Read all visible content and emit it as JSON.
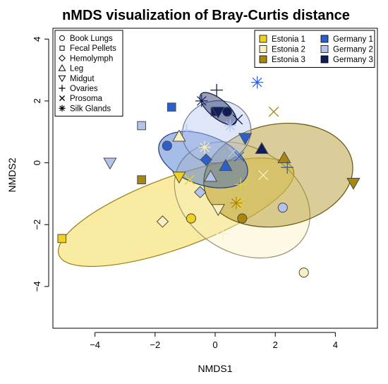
{
  "chart_data": {
    "type": "scatter",
    "title": "nMDS visualization of Bray-Curtis distance",
    "xlabel": "NMDS1",
    "ylabel": "NMDS2",
    "xlim": [
      -5.4,
      5.4
    ],
    "ylim": [
      -5.35,
      4.35
    ],
    "xticks": [
      -4,
      -2,
      0,
      2,
      4
    ],
    "yticks": [
      -4,
      -2,
      0,
      2,
      4
    ],
    "grid": false,
    "tissue_legend_position": "top-left",
    "group_legend_position": "top-right",
    "tissues": [
      {
        "label": "Book Lungs",
        "symbol": "circle"
      },
      {
        "label": "Fecal Pellets",
        "symbol": "square"
      },
      {
        "label": "Hemolymph",
        "symbol": "diamond"
      },
      {
        "label": "Leg",
        "symbol": "triangle-up"
      },
      {
        "label": "Midgut",
        "symbol": "triangle-down"
      },
      {
        "label": "Ovaries",
        "symbol": "plus"
      },
      {
        "label": "Prosoma",
        "symbol": "cross"
      },
      {
        "label": "Silk Glands",
        "symbol": "asterisk"
      }
    ],
    "groups": [
      {
        "label": "Estonia 1",
        "color": "#F0D020"
      },
      {
        "label": "Estonia 2",
        "color": "#FAF0BE"
      },
      {
        "label": "Estonia 3",
        "color": "#A8870F"
      },
      {
        "label": "Germany 1",
        "color": "#2B5FCB"
      },
      {
        "label": "Germany 2",
        "color": "#B3C3EC"
      },
      {
        "label": "Germany 3",
        "color": "#0E1D5C"
      }
    ],
    "ellipses": [
      {
        "group": "Estonia 1",
        "cx": -1.3,
        "cy": -1.6,
        "rx": 4.15,
        "ry": 1.15,
        "angle": 20
      },
      {
        "group": "Estonia 2",
        "cx": 0.9,
        "cy": -1.2,
        "rx": 2.4,
        "ry": 1.7,
        "angle": -30
      },
      {
        "group": "Estonia 3",
        "cx": 2.1,
        "cy": -0.4,
        "rx": 2.5,
        "ry": 1.65,
        "angle": 10
      },
      {
        "group": "Germany 1",
        "cx": -0.4,
        "cy": 0.1,
        "rx": 1.55,
        "ry": 0.8,
        "angle": -20
      },
      {
        "group": "Germany 2",
        "cx": 0.05,
        "cy": 1.0,
        "rx": 1.15,
        "ry": 1.0,
        "angle": 15
      },
      {
        "group": "Germany 3",
        "cx": 0.1,
        "cy": 1.75,
        "rx": 0.75,
        "ry": 0.3,
        "angle": -40
      }
    ],
    "points": [
      {
        "x": -5.1,
        "y": -2.45,
        "symbol": "square",
        "group": "Estonia 1"
      },
      {
        "x": -0.8,
        "y": -1.8,
        "symbol": "circle",
        "group": "Estonia 1"
      },
      {
        "x": -1.2,
        "y": -0.45,
        "symbol": "triangle-down",
        "group": "Estonia 1"
      },
      {
        "x": 0.85,
        "y": -0.7,
        "symbol": "plus",
        "group": "Estonia 1"
      },
      {
        "x": -0.85,
        "y": -0.55,
        "symbol": "cross",
        "group": "Estonia 1"
      },
      {
        "x": 0.8,
        "y": -1.3,
        "symbol": "asterisk",
        "group": "Estonia 1"
      },
      {
        "x": 2.95,
        "y": -3.55,
        "symbol": "circle",
        "group": "Estonia 2"
      },
      {
        "x": -1.75,
        "y": -1.9,
        "symbol": "diamond",
        "group": "Estonia 2"
      },
      {
        "x": -1.2,
        "y": 0.85,
        "symbol": "triangle-up",
        "group": "Estonia 2"
      },
      {
        "x": 0.1,
        "y": -1.5,
        "symbol": "triangle-down",
        "group": "Estonia 2"
      },
      {
        "x": 0.25,
        "y": -2.3,
        "symbol": "plus",
        "group": "Estonia 2"
      },
      {
        "x": 1.6,
        "y": -0.4,
        "symbol": "cross",
        "group": "Estonia 2"
      },
      {
        "x": -0.35,
        "y": 0.5,
        "symbol": "asterisk",
        "group": "Estonia 2"
      },
      {
        "x": 0.9,
        "y": -1.8,
        "symbol": "circle",
        "group": "Estonia 3"
      },
      {
        "x": -2.45,
        "y": -0.55,
        "symbol": "square",
        "group": "Estonia 3"
      },
      {
        "x": 2.3,
        "y": 0.15,
        "symbol": "triangle-up",
        "group": "Estonia 3"
      },
      {
        "x": 4.6,
        "y": -0.65,
        "symbol": "triangle-down",
        "group": "Estonia 3"
      },
      {
        "x": 1.95,
        "y": 1.65,
        "symbol": "cross",
        "group": "Estonia 3"
      },
      {
        "x": 0.7,
        "y": -1.3,
        "symbol": "asterisk",
        "group": "Estonia 3"
      },
      {
        "x": -1.6,
        "y": 0.55,
        "symbol": "circle",
        "group": "Germany 1"
      },
      {
        "x": -1.45,
        "y": 1.8,
        "symbol": "square",
        "group": "Germany 1"
      },
      {
        "x": -0.3,
        "y": 0.1,
        "symbol": "diamond",
        "group": "Germany 1"
      },
      {
        "x": 0.35,
        "y": -0.1,
        "symbol": "triangle-up",
        "group": "Germany 1"
      },
      {
        "x": 1.0,
        "y": 0.8,
        "symbol": "triangle-down",
        "group": "Germany 1"
      },
      {
        "x": 2.4,
        "y": -0.15,
        "symbol": "plus",
        "group": "Germany 1"
      },
      {
        "x": 0.8,
        "y": 0.2,
        "symbol": "cross",
        "group": "Germany 1"
      },
      {
        "x": 1.4,
        "y": 2.6,
        "symbol": "asterisk",
        "group": "Germany 1"
      },
      {
        "x": 2.25,
        "y": -1.45,
        "symbol": "circle",
        "group": "Germany 2"
      },
      {
        "x": -2.45,
        "y": 1.2,
        "symbol": "square",
        "group": "Germany 2"
      },
      {
        "x": -0.5,
        "y": -0.95,
        "symbol": "diamond",
        "group": "Germany 2"
      },
      {
        "x": -0.15,
        "y": -0.45,
        "symbol": "triangle-up",
        "group": "Germany 2"
      },
      {
        "x": -3.5,
        "y": 0.0,
        "symbol": "triangle-down",
        "group": "Germany 2"
      },
      {
        "x": -0.95,
        "y": 1.05,
        "symbol": "plus",
        "group": "Germany 2"
      },
      {
        "x": 0.6,
        "y": 0.35,
        "symbol": "cross",
        "group": "Germany 2"
      },
      {
        "x": 0.5,
        "y": 1.2,
        "symbol": "asterisk",
        "group": "Germany 2"
      },
      {
        "x": 0.4,
        "y": 1.65,
        "symbol": "circle",
        "group": "Germany 3"
      },
      {
        "x": 0.0,
        "y": 1.65,
        "symbol": "square",
        "group": "Germany 3"
      },
      {
        "x": 1.55,
        "y": 0.45,
        "symbol": "triangle-up",
        "group": "Germany 3"
      },
      {
        "x": 0.1,
        "y": 1.65,
        "symbol": "triangle-down",
        "group": "Germany 3"
      },
      {
        "x": 0.05,
        "y": 2.35,
        "symbol": "plus",
        "group": "Germany 3"
      },
      {
        "x": 0.75,
        "y": 1.4,
        "symbol": "cross",
        "group": "Germany 3"
      },
      {
        "x": -0.45,
        "y": 2.0,
        "symbol": "asterisk",
        "group": "Germany 3"
      }
    ]
  }
}
